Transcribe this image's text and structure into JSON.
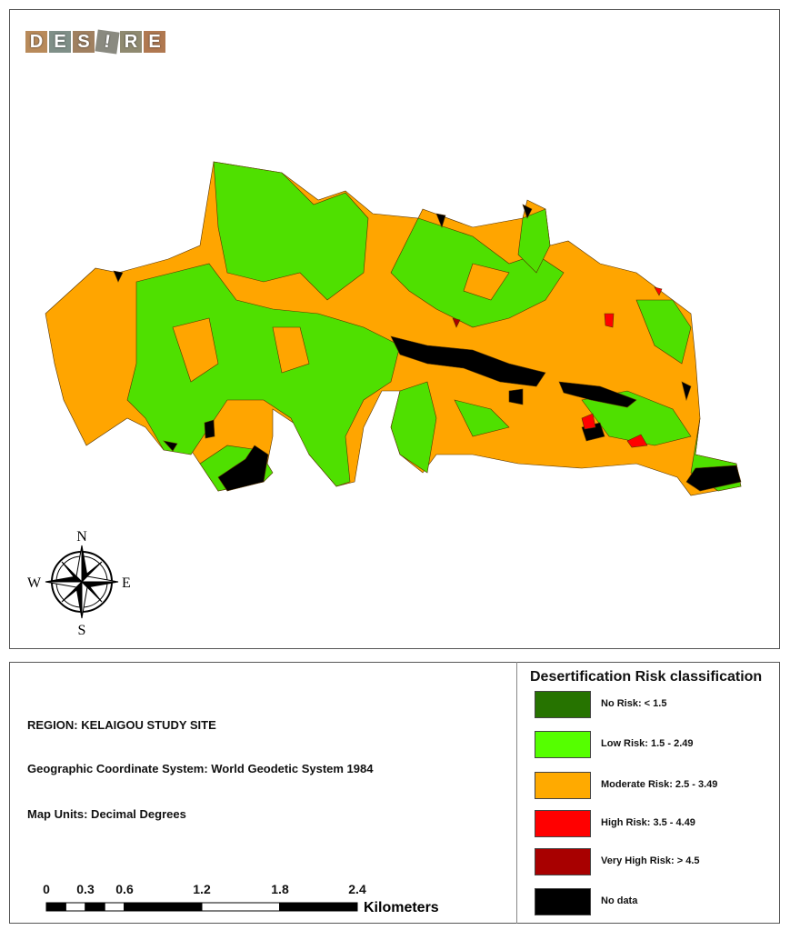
{
  "logo": {
    "text": "DES!RE",
    "letters": [
      "D",
      "E",
      "S",
      "!",
      "R",
      "E"
    ]
  },
  "map": {
    "colors": {
      "no_risk": "#267300",
      "low": "#55e000",
      "moderate": "#ffa500",
      "high": "#ff0000",
      "very_high": "#a80000",
      "no_data": "#000000"
    },
    "compass": {
      "n": "N",
      "s": "S",
      "e": "E",
      "w": "W"
    }
  },
  "info": {
    "region": "REGION: KELAIGOU STUDY SITE",
    "coordinate_system": "Geographic Coordinate System: World Geodetic System 1984",
    "map_units": "Map Units: Decimal Degrees"
  },
  "scale_bar": {
    "ticks": [
      "0",
      "0.3",
      "0.6",
      "1.2",
      "1.8",
      "2.4"
    ],
    "unit": "Kilometers",
    "max_km": 2.4
  },
  "legend": {
    "title": "Desertification Risk classification",
    "items": [
      {
        "label": "No Risk: < 1.5",
        "color": "#267300"
      },
      {
        "label": "Low Risk: 1.5 - 2.49",
        "color": "#55ff00"
      },
      {
        "label": "Moderate Risk: 2.5 - 3.49",
        "color": "#ffaa00"
      },
      {
        "label": "High Risk: 3.5 - 4.49",
        "color": "#ff0000"
      },
      {
        "label": "Very High Risk: > 4.5",
        "color": "#a80000"
      },
      {
        "label": "No data",
        "color": "#000000"
      }
    ]
  }
}
